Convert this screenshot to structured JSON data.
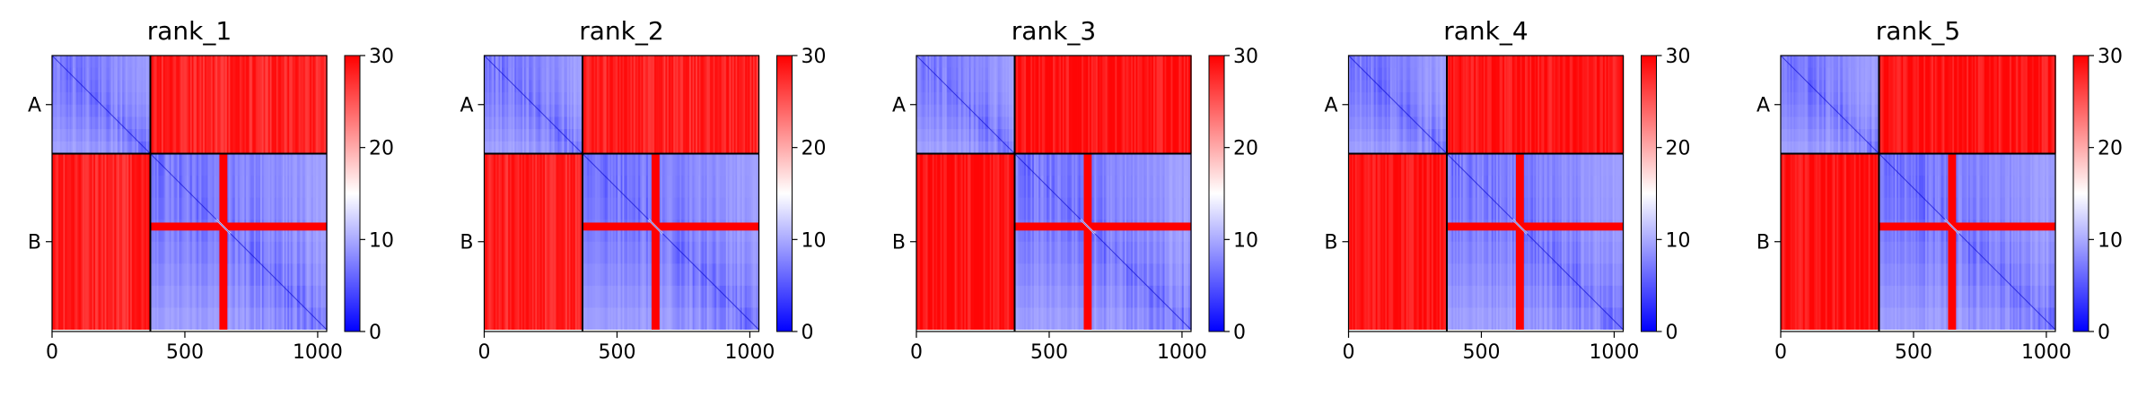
{
  "chart_data": [
    {
      "type": "heatmap",
      "title": "rank_1",
      "xticks": [
        0,
        500,
        1000
      ],
      "xlim": [
        0,
        1034
      ],
      "yticklabels": [
        "A",
        "B"
      ],
      "segment_boundary": 370,
      "insert_start": 630,
      "insert_end": 660,
      "colorbar": {
        "ticks": [
          0,
          10,
          20,
          30
        ],
        "range": [
          0,
          30
        ],
        "colormap": "bwr"
      },
      "within_segment_level": 7,
      "between_segment_level": 28,
      "insert_level": 30,
      "colors": {
        "low": "#0000ff",
        "mid": "#ffffff",
        "high": "#ff0000"
      }
    },
    {
      "type": "heatmap",
      "title": "rank_2",
      "xticks": [
        0,
        500,
        1000
      ],
      "xlim": [
        0,
        1034
      ],
      "yticklabels": [
        "A",
        "B"
      ],
      "segment_boundary": 370,
      "insert_start": 630,
      "insert_end": 660,
      "colorbar": {
        "ticks": [
          0,
          10,
          20,
          30
        ],
        "range": [
          0,
          30
        ],
        "colormap": "bwr"
      },
      "within_segment_level": 7,
      "between_segment_level": 28,
      "insert_level": 30,
      "colors": {
        "low": "#0000ff",
        "mid": "#ffffff",
        "high": "#ff0000"
      }
    },
    {
      "type": "heatmap",
      "title": "rank_3",
      "xticks": [
        0,
        500,
        1000
      ],
      "xlim": [
        0,
        1034
      ],
      "yticklabels": [
        "A",
        "B"
      ],
      "segment_boundary": 370,
      "insert_start": 630,
      "insert_end": 660,
      "colorbar": {
        "ticks": [
          0,
          10,
          20,
          30
        ],
        "range": [
          0,
          30
        ],
        "colormap": "bwr"
      },
      "within_segment_level": 7,
      "between_segment_level": 29,
      "insert_level": 30,
      "colors": {
        "low": "#0000ff",
        "mid": "#ffffff",
        "high": "#ff0000"
      }
    },
    {
      "type": "heatmap",
      "title": "rank_4",
      "xticks": [
        0,
        500,
        1000
      ],
      "xlim": [
        0,
        1034
      ],
      "yticklabels": [
        "A",
        "B"
      ],
      "segment_boundary": 370,
      "insert_start": 630,
      "insert_end": 660,
      "colorbar": {
        "ticks": [
          0,
          10,
          20,
          30
        ],
        "range": [
          0,
          30
        ],
        "colormap": "bwr"
      },
      "within_segment_level": 7,
      "between_segment_level": 29,
      "insert_level": 30,
      "colors": {
        "low": "#0000ff",
        "mid": "#ffffff",
        "high": "#ff0000"
      }
    },
    {
      "type": "heatmap",
      "title": "rank_5",
      "xticks": [
        0,
        500,
        1000
      ],
      "xlim": [
        0,
        1034
      ],
      "yticklabels": [
        "A",
        "B"
      ],
      "segment_boundary": 370,
      "insert_start": 630,
      "insert_end": 660,
      "colorbar": {
        "ticks": [
          0,
          10,
          20,
          30
        ],
        "range": [
          0,
          30
        ],
        "colormap": "bwr"
      },
      "within_segment_level": 7,
      "between_segment_level": 29,
      "insert_level": 30,
      "colors": {
        "low": "#0000ff",
        "mid": "#ffffff",
        "high": "#ff0000"
      }
    }
  ]
}
